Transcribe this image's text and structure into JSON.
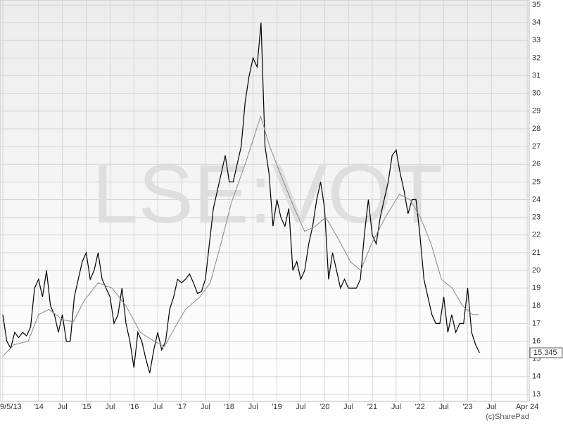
{
  "chart_data": {
    "type": "line",
    "watermark": "LSE:VOT",
    "credit": "(c)SharePad",
    "xlim": [
      -9.7,
      123.5
    ],
    "xticks": [
      {
        "value": -9,
        "label": "9/5/13"
      },
      {
        "value": 0,
        "label": "'14"
      },
      {
        "value": 6,
        "label": "Jul"
      },
      {
        "value": 12,
        "label": "'15"
      },
      {
        "value": 18,
        "label": "Jul"
      },
      {
        "value": 24,
        "label": "'16"
      },
      {
        "value": 30,
        "label": "Jul"
      },
      {
        "value": 36,
        "label": "'17"
      },
      {
        "value": 42,
        "label": "Jul"
      },
      {
        "value": 48,
        "label": "'18"
      },
      {
        "value": 54,
        "label": "Jul"
      },
      {
        "value": 60,
        "label": "'19"
      },
      {
        "value": 66,
        "label": "Jul"
      },
      {
        "value": 72,
        "label": "'20"
      },
      {
        "value": 78,
        "label": "Jul"
      },
      {
        "value": 84,
        "label": "'21"
      },
      {
        "value": 90,
        "label": "Jul"
      },
      {
        "value": 96,
        "label": "'22"
      },
      {
        "value": 102,
        "label": "Jul"
      },
      {
        "value": 108,
        "label": "'23"
      },
      {
        "value": 114,
        "label": "Jul"
      },
      {
        "value": 123,
        "label": "Apr 24"
      }
    ],
    "ylim": [
      12.6,
      35.28
    ],
    "yticks": [
      13,
      14,
      15,
      16,
      17,
      18,
      19,
      20,
      21,
      22,
      23,
      24,
      25,
      26,
      27,
      28,
      29,
      30,
      31,
      32,
      33,
      34,
      35
    ],
    "grid": true,
    "series": [
      {
        "color": "#000000",
        "x": [
          -9,
          -8,
          -7,
          -6,
          -5,
          -4,
          -3,
          -2,
          -1,
          0,
          1,
          2,
          3,
          4,
          5,
          6,
          7,
          8,
          9,
          10,
          11,
          12,
          13,
          14,
          15,
          16,
          17,
          18,
          19,
          20,
          21,
          22,
          23,
          24,
          25,
          26,
          27,
          28,
          29,
          30,
          31,
          32,
          33,
          34,
          35,
          36,
          37,
          38,
          39,
          40,
          41,
          42,
          43,
          44,
          45,
          46,
          47,
          48,
          49,
          50,
          51,
          52,
          53,
          54,
          55,
          56,
          57,
          58,
          59,
          60,
          61,
          62,
          63,
          64,
          65,
          66,
          67,
          68,
          69,
          70,
          71,
          72,
          73,
          74,
          75,
          76,
          77,
          78,
          79,
          80,
          81,
          82,
          83,
          84,
          85,
          86,
          87,
          88,
          89,
          90,
          91,
          92,
          93,
          94,
          95,
          96,
          97,
          98,
          99,
          100,
          101,
          102,
          103,
          104,
          105,
          106,
          107,
          108,
          109,
          110,
          111
        ],
        "values": [
          17.5,
          16,
          15.6,
          16.5,
          16.2,
          16.5,
          16.3,
          16.8,
          19,
          19.5,
          18.5,
          20,
          18,
          17.5,
          16.5,
          17.5,
          16,
          16,
          18.5,
          19.5,
          20.5,
          21,
          19.5,
          20,
          21,
          19.5,
          19,
          18.5,
          17,
          17.5,
          19,
          17,
          16,
          14.5,
          16.5,
          16,
          15,
          14.2,
          15.5,
          16.5,
          15.5,
          16,
          17.8,
          18.5,
          19.5,
          19.3,
          19.5,
          19.8,
          19.3,
          18.7,
          18.8,
          19.5,
          21.5,
          23.5,
          24.5,
          25.5,
          26.5,
          25,
          25,
          26,
          27,
          29.5,
          31,
          32,
          31.5,
          34,
          27,
          25.5,
          22.5,
          24,
          23,
          22.5,
          23.5,
          20,
          20.5,
          19.5,
          20,
          21.5,
          22.5,
          24,
          25,
          23.5,
          19.5,
          21,
          20,
          19,
          19.5,
          19,
          19,
          19,
          19.5,
          22,
          24,
          22,
          21.5,
          23,
          24,
          25,
          26.5,
          26.8,
          25.5,
          24.5,
          23.2,
          24,
          24,
          22,
          19.5,
          18.5,
          17.5,
          17,
          17,
          18.5,
          16.5,
          17.5,
          16.5,
          17,
          17,
          19,
          16.5,
          15.8,
          15.345
        ],
        "last_label": "15.345"
      },
      {
        "color": "#888888",
        "x": [
          -8.8,
          -6.2,
          -2.6,
          0,
          2.6,
          6.2,
          8.8,
          11.5,
          15,
          18.5,
          22,
          25.6,
          29.1,
          31.7,
          34.4,
          37,
          40.6,
          43.2,
          45.9,
          48.5,
          52,
          55.9,
          58.2,
          60.8,
          64.4,
          67,
          69.7,
          72.3,
          74.9,
          78.5,
          81.1,
          83.8,
          87.3,
          90.8,
          93.5,
          96.1,
          98.8,
          101.4,
          104.1,
          106.7,
          109.3,
          110.8
        ],
        "values": [
          15.2,
          15.8,
          16,
          17.5,
          17.8,
          17.2,
          17.1,
          18.3,
          19.3,
          19,
          18,
          16.5,
          16,
          15.7,
          16.8,
          17.8,
          18.5,
          19.3,
          21.5,
          23.8,
          26,
          28.7,
          27,
          25.5,
          23.5,
          22.2,
          22.5,
          23,
          22,
          20.5,
          20,
          21.5,
          23,
          24.3,
          24,
          23,
          21.5,
          19.5,
          19,
          18,
          17.5,
          17.5
        ]
      }
    ]
  }
}
